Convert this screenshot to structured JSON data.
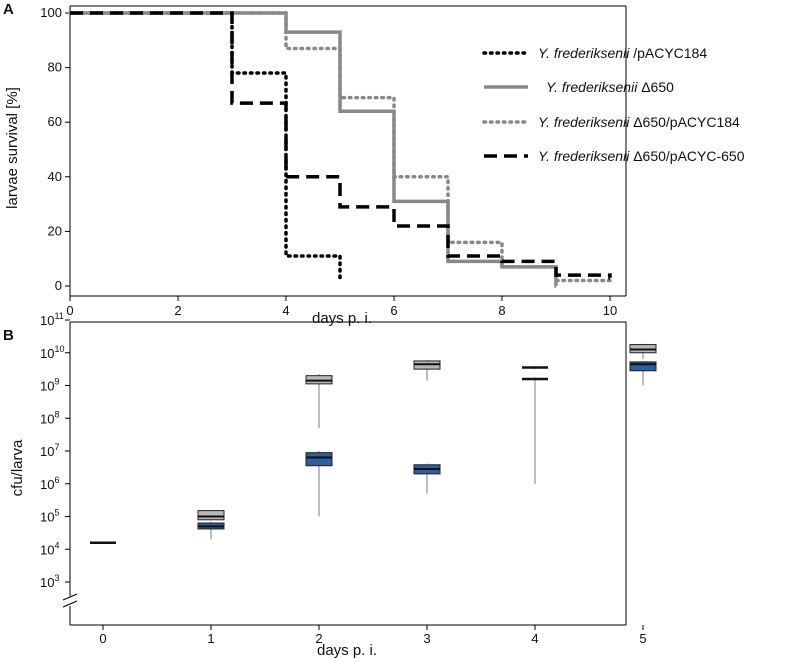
{
  "chart_data": [
    {
      "type": "line",
      "step": true,
      "panel": "A",
      "title": "",
      "xlabel": "days p. i.",
      "ylabel": "larvae survival [%]",
      "xlim": [
        0,
        10.1
      ],
      "ylim": [
        -2,
        100
      ],
      "xticks": [
        "0",
        "2",
        "4",
        "6",
        "8",
        "10"
      ],
      "yticks": [
        "0",
        "20",
        "40",
        "60",
        "80",
        "100"
      ],
      "legend_position": "top-right",
      "series": [
        {
          "name": "Y. frederiksenii /pACYC184",
          "name_italic": "Y. frederiksenii",
          "name_rest": " /pACYC184",
          "style": "dotted",
          "color": "#000000",
          "x": [
            0,
            3,
            4,
            5
          ],
          "y": [
            100,
            78,
            11,
            3
          ]
        },
        {
          "name": "Y. frederiksenii Δ650",
          "name_italic": "Y. frederiksenii",
          "name_rest": " Δ650",
          "style": "solid",
          "color": "#888888",
          "x": [
            0,
            4,
            5,
            6,
            7,
            8,
            9
          ],
          "y": [
            100,
            93,
            64,
            31,
            9,
            7,
            0
          ]
        },
        {
          "name": "Y. frederiksenii Δ650/pACYC184",
          "name_italic": "Y. frederiksenii",
          "name_rest": " Δ650/pACYC184",
          "style": "dotted",
          "color": "#888888",
          "x": [
            0,
            4,
            5,
            6,
            7,
            8,
            9,
            10
          ],
          "y": [
            100,
            87,
            69,
            40,
            16,
            7,
            2,
            2
          ]
        },
        {
          "name": "Y. frederiksenii Δ650/pACYC-650",
          "name_italic": "Y. frederiksenii",
          "name_rest": " Δ650/pACYC-650",
          "style": "dashed",
          "color": "#000000",
          "x": [
            0,
            3,
            4,
            5,
            6,
            7,
            8,
            9,
            10
          ],
          "y": [
            100,
            67,
            40,
            29,
            22,
            11,
            9,
            4,
            3
          ]
        }
      ]
    },
    {
      "type": "box",
      "panel": "B",
      "title": "",
      "xlabel": "days p. i.",
      "ylabel": "cfu/larva",
      "y_scale": "log10",
      "ylim_log10": [
        1.8,
        11.4
      ],
      "axis_break": true,
      "categories": [
        "0",
        "1",
        "2",
        "3",
        "4",
        "5"
      ],
      "ytick_labels": [
        {
          "base": "10",
          "exp": "3",
          "log": 3
        },
        {
          "base": "10",
          "exp": "4",
          "log": 4
        },
        {
          "base": "10",
          "exp": "5",
          "log": 5
        },
        {
          "base": "10",
          "exp": "6",
          "log": 6
        },
        {
          "base": "10",
          "exp": "7",
          "log": 7
        },
        {
          "base": "10",
          "exp": "8",
          "log": 8
        },
        {
          "base": "10",
          "exp": "9",
          "log": 9
        },
        {
          "base": "10",
          "exp": "10",
          "log": 10
        },
        {
          "base": "10",
          "exp": "11",
          "log": 11
        }
      ],
      "series": [
        {
          "name": "grey",
          "color": "#b8b8b8",
          "values_log10": [
            {
              "day": 0,
              "min": 4.18,
              "q1": 4.18,
              "median": 4.2,
              "q3": 4.22,
              "max": 4.22
            },
            {
              "day": 1,
              "min": 4.9,
              "q1": 4.9,
              "median": 5.0,
              "q3": 5.18,
              "max": 5.2
            },
            {
              "day": 2,
              "min": 7.7,
              "q1": 9.05,
              "median": 9.15,
              "q3": 9.3,
              "max": 9.35
            },
            {
              "day": 3,
              "min": 9.15,
              "q1": 9.5,
              "median": 9.65,
              "q3": 9.75,
              "max": 9.78
            },
            {
              "day": 4,
              "min": 9.5,
              "q1": 9.52,
              "median": 9.55,
              "q3": 9.58,
              "max": 9.6
            },
            {
              "day": 5,
              "min": 9.8,
              "q1": 10.0,
              "median": 10.1,
              "q3": 10.25,
              "max": 10.28
            }
          ]
        },
        {
          "name": "blue",
          "color": "#2e5e9e",
          "values_log10": [
            {
              "day": 0,
              "min": 4.18,
              "q1": 4.18,
              "median": 4.2,
              "q3": 4.22,
              "max": 4.22
            },
            {
              "day": 1,
              "min": 4.3,
              "q1": 4.62,
              "median": 4.7,
              "q3": 4.8,
              "max": 4.85
            },
            {
              "day": 2,
              "min": 5.0,
              "q1": 6.55,
              "median": 6.8,
              "q3": 6.95,
              "max": 7.0
            },
            {
              "day": 3,
              "min": 5.7,
              "q1": 6.3,
              "median": 6.45,
              "q3": 6.58,
              "max": 6.62
            },
            {
              "day": 4,
              "min": 6.0,
              "q1": 9.18,
              "median": 9.2,
              "q3": 9.22,
              "max": 9.25
            },
            {
              "day": 5,
              "min": 9.0,
              "q1": 9.45,
              "median": 9.65,
              "q3": 9.72,
              "max": 9.75
            }
          ]
        }
      ]
    }
  ],
  "panels": {
    "a_label": "A",
    "b_label": "B"
  }
}
